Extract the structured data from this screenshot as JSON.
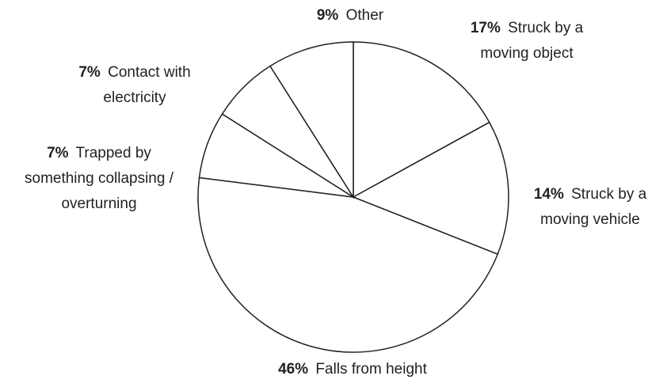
{
  "chart_data": {
    "type": "pie",
    "categories": [
      "Struck by a moving object",
      "Struck by a moving vehicle",
      "Falls from height",
      "Trapped by something collapsing / overturning",
      "Contact with electricity",
      "Other"
    ],
    "values": [
      17,
      14,
      46,
      7,
      7,
      9
    ],
    "value_labels": [
      "17%",
      "14%",
      "46%",
      "7%",
      "7%",
      "9%"
    ],
    "color": "#ffffff",
    "edge_color": "#231f20"
  }
}
